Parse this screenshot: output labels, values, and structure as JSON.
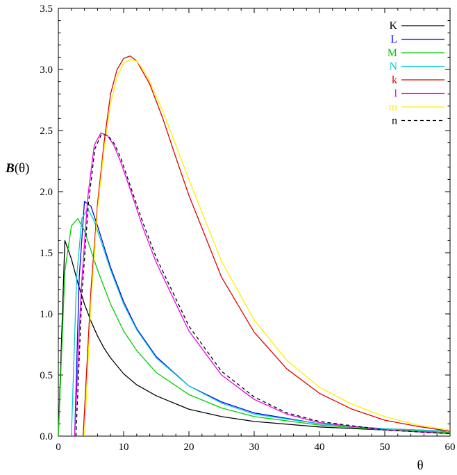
{
  "chart_data": {
    "type": "line",
    "title": "",
    "xlabel": "θ",
    "ylabel_bold": "B",
    "ylabel_rest": "(θ)",
    "xlim": [
      0,
      60
    ],
    "ylim": [
      0,
      3.5
    ],
    "xticks": [
      0,
      10,
      20,
      30,
      40,
      50,
      60
    ],
    "yticks": [
      0.0,
      0.5,
      1.0,
      1.5,
      2.0,
      2.5,
      3.0,
      3.5
    ],
    "xtick_labels": [
      "0",
      "10",
      "20",
      "30",
      "40",
      "50",
      "60"
    ],
    "ytick_labels": [
      "0.0",
      "0.5",
      "1.0",
      "1.5",
      "2.0",
      "2.5",
      "3.0",
      "3.5"
    ],
    "grid": false,
    "legend_position": "top-right",
    "series": [
      {
        "name": "K",
        "color": "#000000",
        "dashed": false,
        "x": [
          0,
          1,
          2,
          3,
          4,
          5,
          6,
          7,
          8,
          10,
          12,
          15,
          20,
          25,
          30,
          40,
          50,
          60
        ],
        "y": [
          0.0,
          1.6,
          1.45,
          1.25,
          1.08,
          0.94,
          0.82,
          0.72,
          0.64,
          0.51,
          0.42,
          0.33,
          0.22,
          0.16,
          0.12,
          0.075,
          0.05,
          0.03
        ]
      },
      {
        "name": "L",
        "color": "#0000ff",
        "dashed": false,
        "x": [
          2.5,
          3.2,
          4,
          5,
          6,
          7,
          8,
          10,
          12,
          15,
          20,
          25,
          30,
          40,
          50,
          60
        ],
        "y": [
          0.0,
          1.3,
          1.92,
          1.88,
          1.72,
          1.55,
          1.38,
          1.1,
          0.88,
          0.65,
          0.41,
          0.28,
          0.19,
          0.1,
          0.06,
          0.04
        ]
      },
      {
        "name": "M",
        "color": "#00cc00",
        "dashed": false,
        "x": [
          0,
          1,
          2,
          3,
          4,
          5,
          6,
          7,
          8,
          10,
          12,
          15,
          20,
          25,
          30,
          40,
          50,
          60
        ],
        "y": [
          0.0,
          1.35,
          1.72,
          1.78,
          1.68,
          1.52,
          1.36,
          1.22,
          1.08,
          0.86,
          0.7,
          0.52,
          0.34,
          0.23,
          0.16,
          0.09,
          0.05,
          0.03
        ]
      },
      {
        "name": "N",
        "color": "#00cccc",
        "dashed": false,
        "x": [
          2,
          2.8,
          3.6,
          4.5,
          5.5,
          6.5,
          8,
          10,
          12,
          15,
          20,
          25,
          30,
          40,
          50,
          60
        ],
        "y": [
          0.0,
          1.3,
          1.78,
          1.86,
          1.76,
          1.6,
          1.36,
          1.08,
          0.87,
          0.64,
          0.41,
          0.27,
          0.18,
          0.1,
          0.06,
          0.04
        ]
      },
      {
        "name": "k",
        "color": "#dd0000",
        "dashed": false,
        "x": [
          3.8,
          5,
          6,
          7,
          8,
          9,
          10,
          11,
          12,
          14,
          16,
          18,
          20,
          25,
          30,
          35,
          40,
          45,
          50,
          55,
          60
        ],
        "y": [
          0.0,
          1.2,
          1.9,
          2.4,
          2.8,
          3.0,
          3.09,
          3.11,
          3.07,
          2.88,
          2.6,
          2.28,
          1.97,
          1.3,
          0.85,
          0.55,
          0.35,
          0.22,
          0.13,
          0.08,
          0.04
        ]
      },
      {
        "name": "l",
        "color": "#ee00ee",
        "dashed": false,
        "x": [
          2.5,
          3.5,
          4.5,
          5.5,
          6.5,
          7.5,
          8.5,
          9.5,
          11,
          13,
          15,
          20,
          25,
          30,
          35,
          40,
          50,
          60
        ],
        "y": [
          0.0,
          1.2,
          1.95,
          2.38,
          2.48,
          2.46,
          2.38,
          2.25,
          2.02,
          1.7,
          1.42,
          0.86,
          0.5,
          0.3,
          0.18,
          0.11,
          0.05,
          0.02
        ]
      },
      {
        "name": "m",
        "color": "#ffee00",
        "dashed": false,
        "x": [
          4,
          5,
          6,
          7,
          8,
          9,
          10,
          11,
          12,
          13,
          14,
          16,
          18,
          20,
          25,
          30,
          35,
          40,
          45,
          50,
          55,
          60
        ],
        "y": [
          0.0,
          1.1,
          1.85,
          2.35,
          2.72,
          2.94,
          3.05,
          3.08,
          3.07,
          3.0,
          2.9,
          2.66,
          2.38,
          2.1,
          1.43,
          0.95,
          0.62,
          0.4,
          0.26,
          0.16,
          0.09,
          0.05
        ]
      },
      {
        "name": "n",
        "color": "#000000",
        "dashed": true,
        "x": [
          2.7,
          3.6,
          4.6,
          5.6,
          6.6,
          7.6,
          8.6,
          9.6,
          11,
          13,
          15,
          20,
          25,
          30,
          35,
          40,
          50,
          60
        ],
        "y": [
          0.0,
          1.15,
          1.9,
          2.35,
          2.47,
          2.46,
          2.39,
          2.27,
          2.05,
          1.74,
          1.46,
          0.9,
          0.53,
          0.32,
          0.19,
          0.12,
          0.05,
          0.02
        ]
      }
    ]
  }
}
